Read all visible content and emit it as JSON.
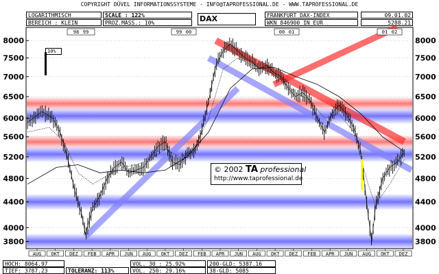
{
  "header": {
    "copyright": "COPYRIGHT  DÜVEL INFORMATIONSSYSTEME - INFO@TAPROFESSIONAL.DE - WWW.TAPROFESSIONAL.DE",
    "chart_kind": "LOGARITHMISCH",
    "bereich": "BEREICH : KLEIN",
    "scale": "SCALE : 122%",
    "prozmass": "PROZ.MASS.: 10%",
    "symbol": "DAX",
    "exchange": "FRANKFURT DAX-INDEX",
    "wkn": "WKN 846900   IN EUR",
    "date": "09.01.02",
    "last": "5288.21"
  },
  "footer": {
    "hoch": "HOCH: 8064.97",
    "tief": "TIEF: 3787.23",
    "toleranz": "TOLERANZ: 113%",
    "vol30": "VOL. 30 : 25.92%",
    "vol250": "VOL. 250: 29.16%",
    "gld200": "200-GLD: 5387.16",
    "gld38": "38-GLD: 5085"
  },
  "watermark": {
    "line1_prefix": "© 2002 ",
    "line1_brand": "TA",
    "line1_suffix": " professional",
    "line2": "http://www.taprofessional.de"
  },
  "scale_marker": "10%",
  "colors": {
    "red_band": "#ff6060",
    "blue_band": "#5a5aff",
    "red_trend": "#ff3030",
    "blue_trend": "#8080ff",
    "yellow_mark": "#ffff00"
  },
  "chart_data": {
    "type": "candlestick",
    "y_scale": "log",
    "ylim": [
      3700,
      8400
    ],
    "yticks": [
      3800,
      4000,
      4400,
      4800,
      5200,
      5600,
      6000,
      6500,
      7000,
      7500,
      8000
    ],
    "year_labels": [
      "98",
      "99",
      "00",
      "01",
      "02"
    ],
    "x_labels": [
      "AUG",
      "OKT",
      "DEZ",
      "FEB",
      "APR",
      "JUN",
      "AUG",
      "OKT",
      "DEZ",
      "FEB",
      "APR",
      "JUN",
      "AUG",
      "OKT",
      "DEZ",
      "FEB",
      "APR",
      "JUN",
      "AUG",
      "OKT",
      "DEZ"
    ],
    "close_path": [
      [
        0,
        5900
      ],
      [
        4,
        6150
      ],
      [
        7,
        6000
      ],
      [
        9,
        5700
      ],
      [
        11,
        5200
      ],
      [
        13,
        4600
      ],
      [
        15,
        4200
      ],
      [
        16,
        3900
      ],
      [
        18,
        4300
      ],
      [
        20,
        4500
      ],
      [
        22,
        4800
      ],
      [
        24,
        5000
      ],
      [
        26,
        5100
      ],
      [
        28,
        4900
      ],
      [
        30,
        4950
      ],
      [
        32,
        5000
      ],
      [
        34,
        5200
      ],
      [
        36,
        5400
      ],
      [
        38,
        5500
      ],
      [
        40,
        5100
      ],
      [
        42,
        5050
      ],
      [
        44,
        5250
      ],
      [
        46,
        5300
      ],
      [
        48,
        5700
      ],
      [
        50,
        6400
      ],
      [
        52,
        7300
      ],
      [
        54,
        7700
      ],
      [
        56,
        7900
      ],
      [
        58,
        7700
      ],
      [
        60,
        7500
      ],
      [
        62,
        7400
      ],
      [
        64,
        7200
      ],
      [
        66,
        7300
      ],
      [
        68,
        7100
      ],
      [
        70,
        7000
      ],
      [
        72,
        6700
      ],
      [
        74,
        6500
      ],
      [
        76,
        6600
      ],
      [
        78,
        6400
      ],
      [
        80,
        6000
      ],
      [
        82,
        5700
      ],
      [
        84,
        6100
      ],
      [
        86,
        6300
      ],
      [
        88,
        6100
      ],
      [
        90,
        5800
      ],
      [
        92,
        5300
      ],
      [
        94,
        4200
      ],
      [
        95,
        3790
      ],
      [
        96,
        4300
      ],
      [
        98,
        4800
      ],
      [
        100,
        5000
      ],
      [
        102,
        5100
      ],
      [
        104,
        5290
      ]
    ],
    "sma_fast_path": [
      [
        0,
        5700
      ],
      [
        6,
        5800
      ],
      [
        10,
        5500
      ],
      [
        14,
        4900
      ],
      [
        18,
        4700
      ],
      [
        22,
        4850
      ],
      [
        26,
        5000
      ],
      [
        30,
        5050
      ],
      [
        34,
        5150
      ],
      [
        38,
        5350
      ],
      [
        42,
        5200
      ],
      [
        46,
        5350
      ],
      [
        50,
        6000
      ],
      [
        54,
        7200
      ],
      [
        58,
        7500
      ],
      [
        62,
        7300
      ],
      [
        66,
        7200
      ],
      [
        70,
        6900
      ],
      [
        74,
        6600
      ],
      [
        78,
        6400
      ],
      [
        82,
        6000
      ],
      [
        86,
        6100
      ],
      [
        90,
        5700
      ],
      [
        94,
        4700
      ],
      [
        96,
        4350
      ],
      [
        100,
        4700
      ],
      [
        104,
        5150
      ]
    ],
    "sma_slow_path": [
      [
        0,
        4700
      ],
      [
        8,
        5000
      ],
      [
        14,
        5050
      ],
      [
        20,
        4900
      ],
      [
        26,
        4950
      ],
      [
        32,
        4900
      ],
      [
        38,
        4950
      ],
      [
        44,
        5200
      ],
      [
        50,
        5700
      ],
      [
        56,
        6700
      ],
      [
        62,
        7200
      ],
      [
        68,
        7250
      ],
      [
        74,
        7000
      ],
      [
        80,
        6800
      ],
      [
        86,
        6500
      ],
      [
        92,
        6100
      ],
      [
        98,
        5600
      ],
      [
        104,
        5300
      ]
    ],
    "red_bands": [
      6050,
      5250
    ],
    "blue_bands": [
      6050,
      5250,
      4400,
      3800
    ],
    "trend_red_1": [
      [
        52,
        8000
      ],
      [
        104,
        5500
      ]
    ],
    "trend_red_2": [
      [
        68,
        6800
      ],
      [
        102,
        8400
      ]
    ],
    "trend_blue_1": [
      [
        16,
        3870
      ],
      [
        58,
        6700
      ]
    ],
    "trend_blue_2": [
      [
        50,
        7500
      ],
      [
        106,
        4950
      ]
    ],
    "x_min": 0,
    "x_max": 106
  }
}
